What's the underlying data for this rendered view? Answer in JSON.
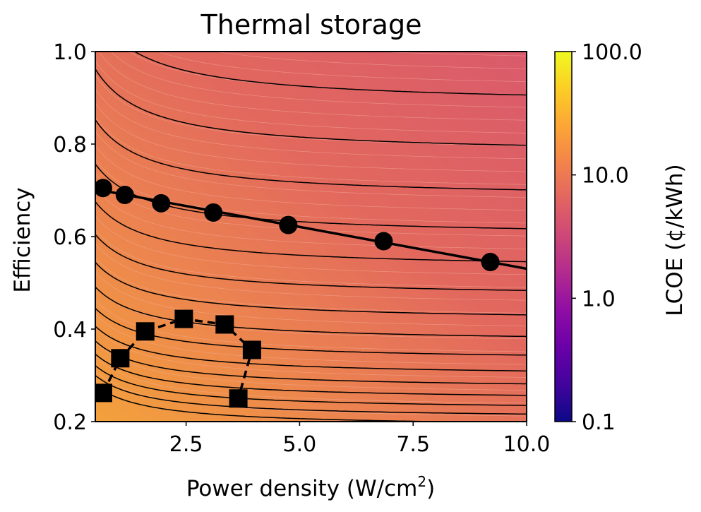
{
  "chart_data": {
    "type": "contour",
    "title": "Thermal storage",
    "xlabel": "Power density (W/cm",
    "xlabel_sup": "2",
    "xlabel_close": ")",
    "ylabel": "Efficiency",
    "xlim": [
      0.5,
      10.0
    ],
    "ylim": [
      0.2,
      1.0
    ],
    "xticks": [
      {
        "value": 2.5,
        "label": "2.5"
      },
      {
        "value": 5.0,
        "label": "5.0"
      },
      {
        "value": 7.5,
        "label": "7.5"
      },
      {
        "value": 10.0,
        "label": "10.0"
      }
    ],
    "yticks": [
      {
        "value": 0.2,
        "label": "0.2"
      },
      {
        "value": 0.4,
        "label": "0.4"
      },
      {
        "value": 0.6,
        "label": "0.6"
      },
      {
        "value": 0.8,
        "label": "0.8"
      },
      {
        "value": 1.0,
        "label": "1.0"
      }
    ],
    "colorbar": {
      "label": "LCOE (¢/kWh)",
      "scale": "log",
      "colormap": "plasma",
      "range": [
        0.1,
        100.0
      ],
      "ticks": [
        {
          "value": 0.1,
          "label": "0.1"
        },
        {
          "value": 1.0,
          "label": "1.0"
        },
        {
          "value": 10.0,
          "label": "10.0"
        },
        {
          "value": 100.0,
          "label": "100.0"
        }
      ]
    },
    "series": [
      {
        "marker": "circle",
        "line": "solid",
        "x": [
          0.67,
          1.15,
          1.95,
          3.1,
          4.75,
          6.85,
          9.2
        ],
        "y": [
          0.705,
          0.69,
          0.672,
          0.652,
          0.625,
          0.59,
          0.545
        ]
      },
      {
        "marker": "square",
        "line": "dashed",
        "x": [
          0.67,
          1.05,
          1.6,
          2.45,
          3.35,
          3.95,
          3.65
        ],
        "y": [
          0.262,
          0.337,
          0.395,
          0.422,
          0.41,
          0.355,
          0.25
        ]
      }
    ]
  }
}
